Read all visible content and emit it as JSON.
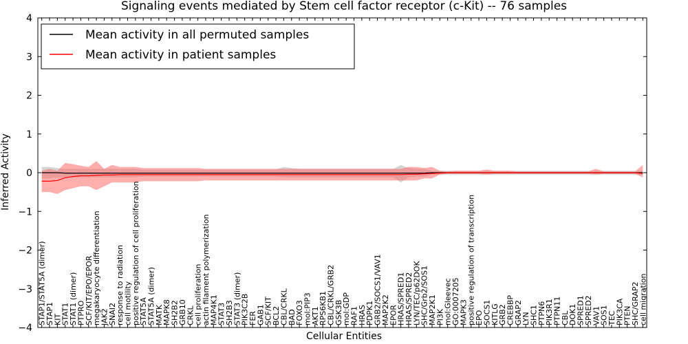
{
  "chart_data": {
    "type": "line",
    "title": "Signaling events mediated by Stem cell factor receptor (c-Kit) -- 76 samples",
    "xlabel": "Cellular Entities",
    "ylabel": "Inferred Activity",
    "ylim": [
      -4,
      4
    ],
    "yticks": [
      "4",
      "3",
      "2",
      "1",
      "0",
      "−1",
      "−2",
      "−3",
      "−4"
    ],
    "legend_position": "top-left",
    "categories": [
      "STAP1/STAT5A (dimer)",
      "STAP1",
      "KIT",
      "STAT1",
      "STAT1 (dimer)",
      "PTPRO",
      "SCF/KIT/EPO/EPOR",
      "megakaryocyte differentiation",
      "JAK2",
      "SNAI2",
      "response to radiation",
      "cell motility",
      "positive regulation of cell proliferation",
      "STAT5A",
      "STAT5A (dimer)",
      "MATK",
      "MAPK8",
      "SH2B2",
      "GRB10",
      "CRKL",
      "cell proliferation",
      "actin filament polymerization",
      "MAP4K1",
      "STAT3",
      "SH2B3",
      "STAT3 (dimer)",
      "PIK3C2B",
      "FER",
      "GAB1",
      "SCF/KIT",
      "BCL2",
      "CBL/CRKL",
      "BAD",
      "FOXO3",
      "mol:PIP3",
      "AKT1",
      "RPS6KB1",
      "CBL/CRKL/GRB2",
      "GSK3B",
      "mol:GDP",
      "RAF1",
      "HRAS",
      "PDPK1",
      "GRB2/SOCS1/VAV1",
      "MAP2K2",
      "EPOR",
      "HRAS/SPRED1",
      "HRAS/SPRED2",
      "LYN/TEC/p62DOK",
      "SHC/Grb2/SOS1",
      "MAP2K1",
      "PI3K",
      "mol:Gleevec",
      "GO:0007205",
      "MAPK3",
      "positive regulation of transcription",
      "EPO",
      "SOCS1",
      "KITLG",
      "GRB2",
      "CREBBP",
      "GRAP2",
      "LYN",
      "SHC1",
      "PTPN6",
      "PIK3R1",
      "PTPN11",
      "CBL",
      "DOK1",
      "SPRED1",
      "SPRED2",
      "VAV1",
      "SOS1",
      "TEC",
      "PIK3CA",
      "PTEN",
      "SHC/GRAP2",
      "cell migration"
    ],
    "series": [
      {
        "name": "Mean activity in all permuted samples",
        "color": "#000000",
        "values": [
          0.0,
          0.0,
          0.0,
          -0.01,
          -0.01,
          -0.01,
          -0.01,
          -0.01,
          -0.01,
          -0.01,
          -0.01,
          -0.01,
          -0.01,
          -0.01,
          -0.01,
          -0.01,
          -0.01,
          -0.01,
          -0.01,
          -0.01,
          -0.01,
          -0.01,
          -0.01,
          -0.01,
          -0.01,
          -0.01,
          -0.01,
          -0.01,
          -0.01,
          -0.01,
          -0.01,
          -0.01,
          -0.01,
          -0.01,
          -0.01,
          -0.01,
          -0.01,
          -0.01,
          -0.01,
          -0.01,
          -0.01,
          -0.01,
          -0.01,
          -0.01,
          -0.01,
          -0.01,
          -0.01,
          -0.01,
          -0.01,
          -0.01,
          0.0,
          0.0,
          0.0,
          0.0,
          0.0,
          0.0,
          0.0,
          0.0,
          0.0,
          0.0,
          0.0,
          0.0,
          0.0,
          0.0,
          0.0,
          0.0,
          0.0,
          0.0,
          0.0,
          0.0,
          0.0,
          0.0,
          0.0,
          0.0,
          0.0,
          0.0,
          0.0,
          0.0
        ],
        "upper": [
          0.15,
          0.15,
          0.12,
          0.1,
          0.1,
          0.1,
          0.1,
          0.1,
          0.1,
          0.1,
          0.1,
          0.1,
          0.1,
          0.08,
          0.08,
          0.08,
          0.08,
          0.08,
          0.08,
          0.08,
          0.08,
          0.08,
          0.08,
          0.08,
          0.08,
          0.08,
          0.08,
          0.08,
          0.08,
          0.08,
          0.08,
          0.15,
          0.12,
          0.1,
          0.1,
          0.1,
          0.1,
          0.1,
          0.1,
          0.1,
          0.1,
          0.1,
          0.1,
          0.1,
          0.1,
          0.1,
          0.2,
          0.12,
          0.1,
          0.1,
          0.05,
          0.05,
          0.05,
          0.05,
          0.05,
          0.05,
          0.05,
          0.05,
          0.05,
          0.05,
          0.05,
          0.05,
          0.05,
          0.05,
          0.05,
          0.05,
          0.05,
          0.05,
          0.05,
          0.05,
          0.05,
          0.05,
          0.05,
          0.05,
          0.05,
          0.05,
          0.05,
          0.05
        ],
        "lower": [
          -0.15,
          -0.15,
          -0.12,
          -0.12,
          -0.12,
          -0.12,
          -0.12,
          -0.12,
          -0.12,
          -0.12,
          -0.12,
          -0.12,
          -0.12,
          -0.1,
          -0.1,
          -0.1,
          -0.1,
          -0.1,
          -0.1,
          -0.1,
          -0.1,
          -0.1,
          -0.1,
          -0.1,
          -0.1,
          -0.1,
          -0.1,
          -0.1,
          -0.1,
          -0.1,
          -0.1,
          -0.12,
          -0.12,
          -0.12,
          -0.12,
          -0.12,
          -0.12,
          -0.12,
          -0.12,
          -0.12,
          -0.12,
          -0.12,
          -0.12,
          -0.12,
          -0.12,
          -0.12,
          -0.25,
          -0.12,
          -0.1,
          -0.1,
          -0.05,
          -0.05,
          -0.05,
          -0.05,
          -0.05,
          -0.05,
          -0.05,
          -0.05,
          -0.05,
          -0.05,
          -0.05,
          -0.05,
          -0.05,
          -0.05,
          -0.05,
          -0.05,
          -0.05,
          -0.05,
          -0.05,
          -0.05,
          -0.05,
          -0.05,
          -0.05,
          -0.05,
          -0.05,
          -0.05,
          -0.05,
          -0.05
        ]
      },
      {
        "name": "Mean activity in patient samples",
        "color": "#ff0000",
        "values": [
          -0.22,
          -0.22,
          -0.2,
          -0.13,
          -0.1,
          -0.08,
          -0.08,
          -0.07,
          -0.06,
          -0.06,
          -0.05,
          -0.05,
          -0.05,
          -0.05,
          -0.05,
          -0.05,
          -0.05,
          -0.05,
          -0.05,
          -0.05,
          -0.05,
          -0.05,
          -0.05,
          -0.05,
          -0.05,
          -0.05,
          -0.05,
          -0.05,
          -0.05,
          -0.05,
          -0.05,
          -0.05,
          -0.05,
          -0.05,
          -0.05,
          -0.05,
          -0.05,
          -0.05,
          -0.05,
          -0.05,
          -0.05,
          -0.05,
          -0.05,
          -0.05,
          -0.05,
          -0.05,
          -0.05,
          -0.04,
          -0.04,
          -0.03,
          -0.02,
          -0.01,
          0.0,
          0.0,
          0.0,
          0.0,
          0.0,
          0.0,
          0.0,
          0.0,
          0.0,
          0.0,
          0.0,
          0.0,
          0.0,
          0.0,
          0.0,
          0.0,
          0.0,
          0.0,
          0.0,
          0.0,
          0.0,
          0.0,
          0.0,
          0.0,
          0.0,
          -0.02
        ],
        "upper": [
          0.05,
          0.1,
          0.05,
          0.25,
          0.22,
          0.18,
          0.15,
          0.3,
          0.1,
          0.2,
          0.15,
          0.15,
          0.15,
          0.12,
          0.12,
          0.12,
          0.12,
          0.12,
          0.12,
          0.12,
          0.12,
          0.1,
          0.1,
          0.1,
          0.1,
          0.1,
          0.1,
          0.1,
          0.1,
          0.1,
          0.1,
          0.1,
          0.1,
          0.1,
          0.1,
          0.1,
          0.1,
          0.1,
          0.1,
          0.1,
          0.1,
          0.1,
          0.1,
          0.1,
          0.1,
          0.1,
          0.1,
          0.15,
          0.15,
          0.12,
          0.15,
          0.05,
          0.03,
          0.05,
          0.05,
          0.05,
          0.05,
          0.08,
          0.05,
          0.05,
          0.05,
          0.03,
          0.03,
          0.03,
          0.03,
          0.03,
          0.03,
          0.03,
          0.03,
          0.03,
          0.03,
          0.1,
          0.03,
          0.03,
          0.03,
          0.03,
          0.03,
          0.2
        ],
        "lower": [
          -0.5,
          -0.5,
          -0.55,
          -0.45,
          -0.4,
          -0.35,
          -0.35,
          -0.45,
          -0.35,
          -0.25,
          -0.25,
          -0.25,
          -0.25,
          -0.22,
          -0.22,
          -0.22,
          -0.22,
          -0.22,
          -0.22,
          -0.22,
          -0.22,
          -0.2,
          -0.2,
          -0.2,
          -0.2,
          -0.2,
          -0.2,
          -0.2,
          -0.2,
          -0.2,
          -0.2,
          -0.2,
          -0.2,
          -0.2,
          -0.2,
          -0.2,
          -0.2,
          -0.2,
          -0.2,
          -0.2,
          -0.2,
          -0.2,
          -0.2,
          -0.2,
          -0.2,
          -0.2,
          -0.2,
          -0.2,
          -0.2,
          -0.15,
          -0.15,
          -0.05,
          -0.03,
          -0.03,
          -0.03,
          -0.03,
          -0.03,
          -0.05,
          -0.03,
          -0.03,
          -0.03,
          -0.03,
          -0.03,
          -0.03,
          -0.03,
          -0.03,
          -0.03,
          -0.03,
          -0.03,
          -0.03,
          -0.03,
          -0.05,
          -0.03,
          -0.03,
          -0.03,
          -0.03,
          -0.03,
          -0.12
        ]
      }
    ]
  },
  "colors": {
    "permuted_band": "#c8c8c8",
    "patient_band": "#ff6b6b",
    "axis": "#000000"
  }
}
